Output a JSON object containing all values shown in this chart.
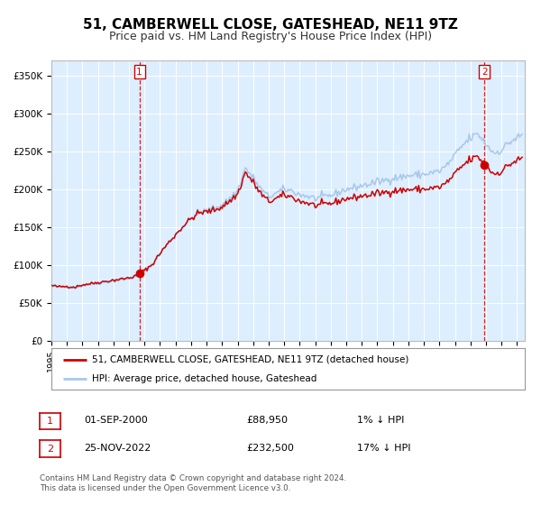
{
  "title": "51, CAMBERWELL CLOSE, GATESHEAD, NE11 9TZ",
  "subtitle": "Price paid vs. HM Land Registry's House Price Index (HPI)",
  "ylabel_ticks": [
    "£0",
    "£50K",
    "£100K",
    "£150K",
    "£200K",
    "£250K",
    "£300K",
    "£350K"
  ],
  "ytick_values": [
    0,
    50000,
    100000,
    150000,
    200000,
    250000,
    300000,
    350000
  ],
  "ylim": [
    0,
    370000
  ],
  "xlim_start": 1995.0,
  "xlim_end": 2025.5,
  "sale1": {
    "date": 2000.67,
    "price": 88950,
    "label": "1"
  },
  "sale2": {
    "date": 2022.9,
    "price": 232500,
    "label": "2"
  },
  "hpi_color": "#a8c8e8",
  "sale_color": "#cc0000",
  "dot_color": "#cc0000",
  "vline_color": "#cc0000",
  "plot_bg": "#ddeeff",
  "legend_label1": "51, CAMBERWELL CLOSE, GATESHEAD, NE11 9TZ (detached house)",
  "legend_label2": "HPI: Average price, detached house, Gateshead",
  "table_rows": [
    {
      "num": "1",
      "date": "01-SEP-2000",
      "price": "£88,950",
      "change": "1% ↓ HPI"
    },
    {
      "num": "2",
      "date": "25-NOV-2022",
      "price": "£232,500",
      "change": "17% ↓ HPI"
    }
  ],
  "footer": "Contains HM Land Registry data © Crown copyright and database right 2024.\nThis data is licensed under the Open Government Licence v3.0.",
  "title_fontsize": 11,
  "subtitle_fontsize": 9
}
